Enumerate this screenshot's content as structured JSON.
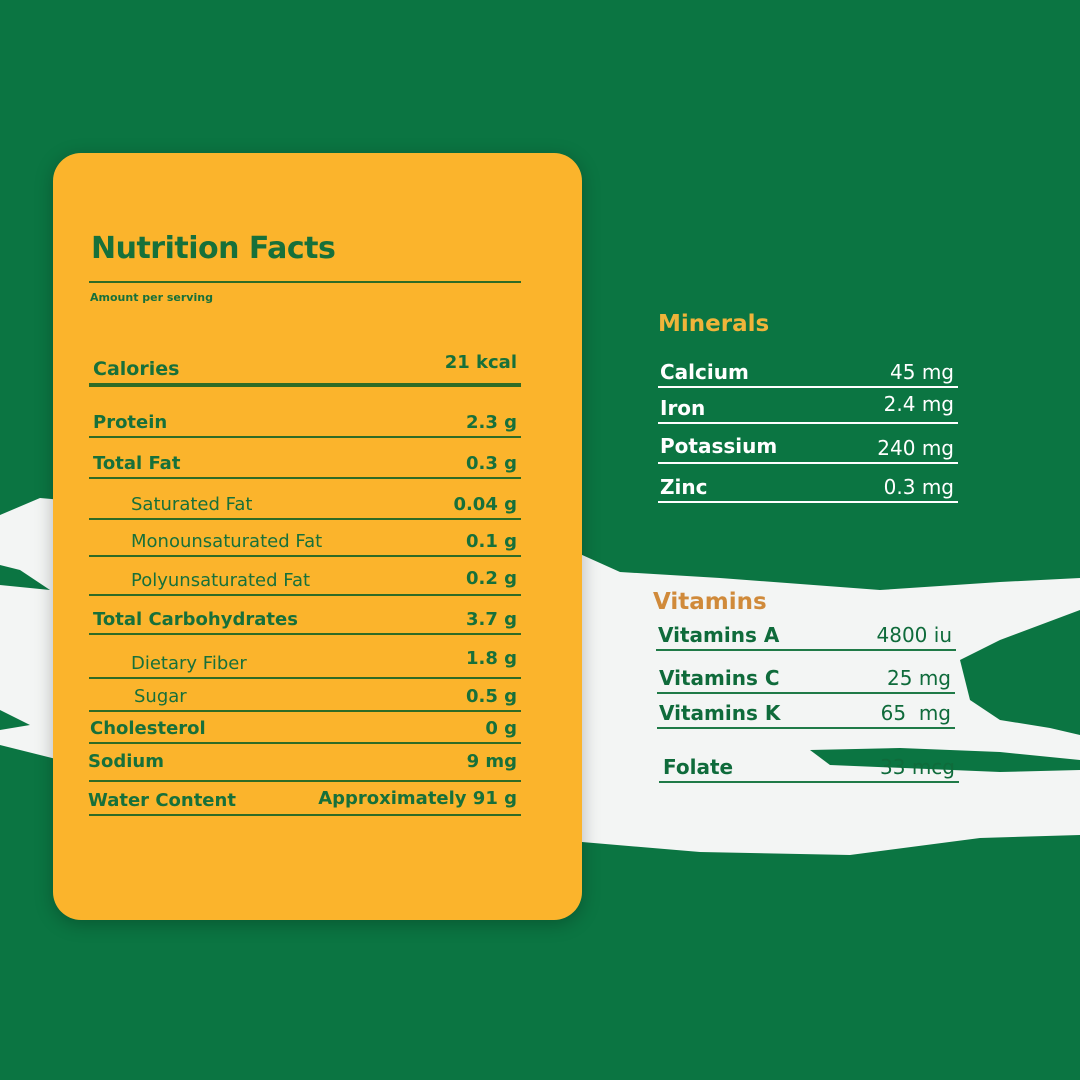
{
  "colors": {
    "background": "#0b7542",
    "card": "#fbb42c",
    "text_green": "#17703a",
    "minerals_heading": "#f0b43a",
    "vitamins_heading": "#d08a3a",
    "brush": "#f3f5f4"
  },
  "nutrition": {
    "title": "Nutrition Facts",
    "subtitle": "Amount per serving",
    "rows": [
      {
        "label": "Calories",
        "value": "21 kcal"
      },
      {
        "label": "Protein",
        "value": "2.3 g"
      },
      {
        "label": "Total Fat",
        "value": "0.3 g"
      },
      {
        "label": "Saturated Fat",
        "value": "0.04 g"
      },
      {
        "label": "Monounsaturated Fat",
        "value": "0.1 g"
      },
      {
        "label": "Polyunsaturated Fat",
        "value": "0.2 g"
      },
      {
        "label": "Total Carbohydrates",
        "value": "3.7 g"
      },
      {
        "label": "Dietary Fiber",
        "value": "1.8 g"
      },
      {
        "label": "Sugar",
        "value": "0.5 g"
      },
      {
        "label": "Cholesterol",
        "value": "0 g"
      },
      {
        "label": "Sodium",
        "value": "9 mg"
      },
      {
        "label": "Water Content",
        "value": "Approximately 91 g"
      }
    ]
  },
  "minerals": {
    "heading": "Minerals",
    "rows": [
      {
        "label": "Calcium",
        "value": "45 mg"
      },
      {
        "label": "Iron",
        "value": "2.4 mg"
      },
      {
        "label": "Potassium",
        "value": "240 mg"
      },
      {
        "label": "Zinc",
        "value": "0.3 mg"
      }
    ]
  },
  "vitamins": {
    "heading": "Vitamins",
    "rows": [
      {
        "label": "Vitamins A",
        "value": "4800 iu"
      },
      {
        "label": "Vitamins C",
        "value": "25 mg"
      },
      {
        "label": "Vitamins K",
        "value": "65  mg"
      },
      {
        "label": "Folate",
        "value": "33 mcg"
      }
    ]
  }
}
